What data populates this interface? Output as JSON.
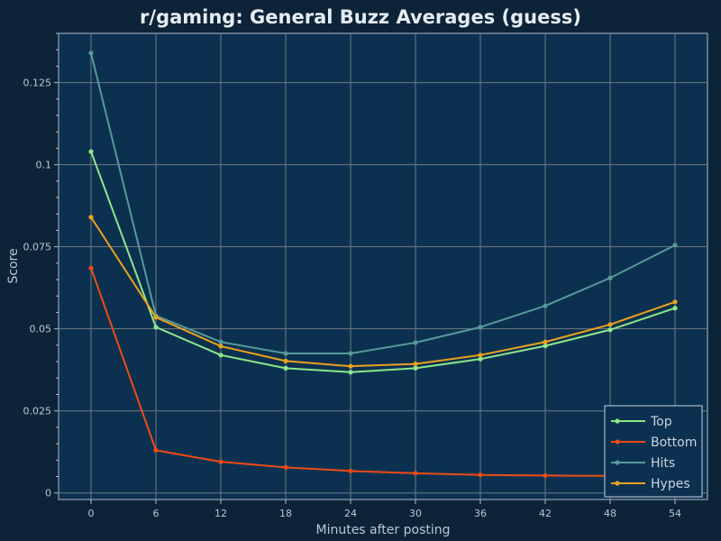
{
  "chart_data": {
    "type": "line",
    "title": "r/gaming: General Buzz Averages (guess)",
    "xlabel": "Minutes after posting",
    "ylabel": "Score",
    "x": [
      0,
      6,
      12,
      18,
      24,
      30,
      36,
      42,
      48,
      54
    ],
    "xlim": [
      -3,
      57
    ],
    "ylim": [
      -0.002,
      0.14
    ],
    "xticks": [
      "0",
      "6",
      "12",
      "18",
      "24",
      "30",
      "36",
      "42",
      "48",
      "54"
    ],
    "yticks": [
      "0",
      "0.025",
      "0.05",
      "0.075",
      "0.1",
      "0.125"
    ],
    "ytick_values": [
      0,
      0.025,
      0.05,
      0.075,
      0.1,
      0.125
    ],
    "grid": true,
    "legend_position": "bottom-right",
    "series": [
      {
        "name": "Top",
        "color": "#8ee68a",
        "values": [
          0.104,
          0.0505,
          0.042,
          0.038,
          0.0368,
          0.038,
          0.0408,
          0.0448,
          0.0497,
          0.0563
        ]
      },
      {
        "name": "Bottom",
        "color": "#ee4a14",
        "values": [
          0.0685,
          0.013,
          0.0095,
          0.0078,
          0.0067,
          0.006,
          0.0055,
          0.0053,
          0.0052,
          0.0052
        ]
      },
      {
        "name": "Hits",
        "color": "#57999a",
        "values": [
          0.134,
          0.054,
          0.046,
          0.0425,
          0.0425,
          0.0458,
          0.0505,
          0.057,
          0.0655,
          0.0755
        ]
      },
      {
        "name": "Hypes",
        "color": "#eaa21e",
        "values": [
          0.084,
          0.0535,
          0.0447,
          0.0402,
          0.0386,
          0.0393,
          0.042,
          0.046,
          0.0513,
          0.0582
        ]
      }
    ]
  }
}
